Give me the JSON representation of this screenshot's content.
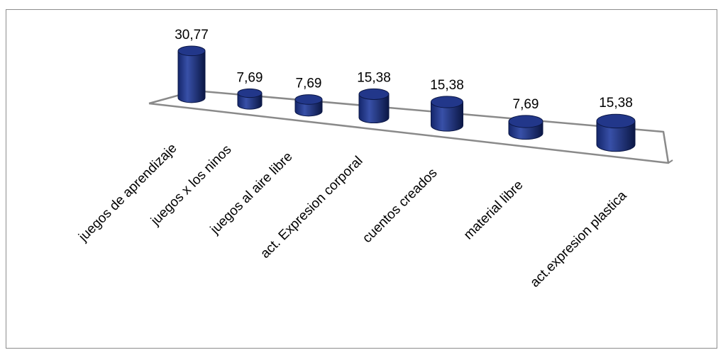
{
  "chart_data": {
    "type": "bar",
    "subtype": "3d-cylinder",
    "categories": [
      "juegos de aprendizaje",
      "juegos x los ninos",
      "juegos al aire libre",
      "act. Expresion corporal",
      "cuentos creados",
      "material libre",
      "act.expresion plastica"
    ],
    "values": [
      30.77,
      7.69,
      7.69,
      15.38,
      15.38,
      7.69,
      15.38
    ],
    "data_labels": [
      "30,77",
      "7,69",
      "7,69",
      "15,38",
      "15,38",
      "7,69",
      "15,38"
    ],
    "title": "",
    "xlabel": "",
    "ylabel": "",
    "ylim": [
      0,
      35
    ],
    "grid": false,
    "legend": "none",
    "bar_color": "#14266b",
    "bar_highlight": "#3850a8",
    "floor_line_color": "#8a8a8a"
  }
}
